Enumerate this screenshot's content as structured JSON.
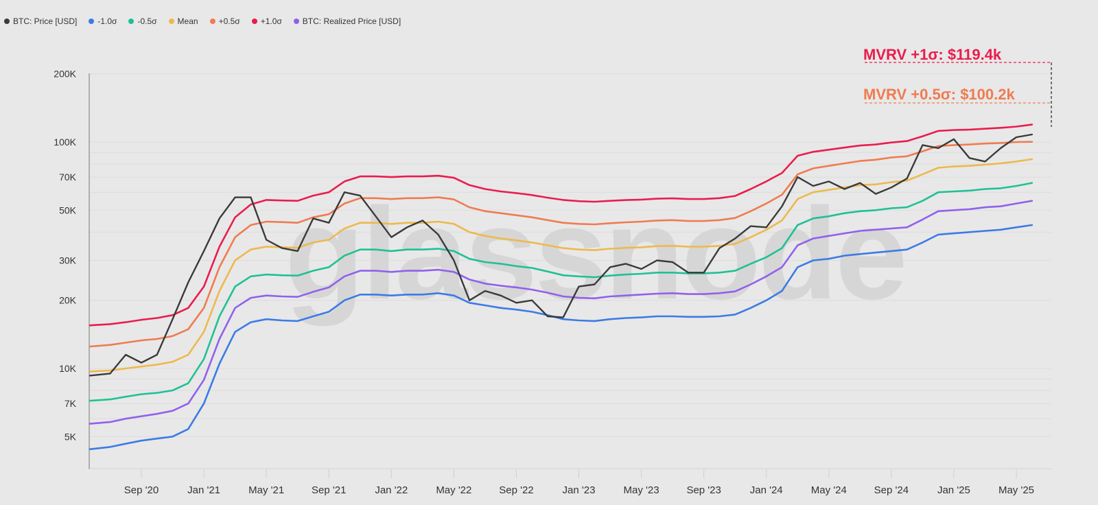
{
  "legend": [
    {
      "label": "BTC: Price [USD]",
      "color": "#3a3a3a",
      "key": "price"
    },
    {
      "label": "-1.0σ",
      "color": "#3b7be6",
      "key": "minus1"
    },
    {
      "label": "-0.5σ",
      "color": "#1fc194",
      "key": "minus05"
    },
    {
      "label": "Mean",
      "color": "#edb94d",
      "key": "mean"
    },
    {
      "label": "+0.5σ",
      "color": "#f07b4f",
      "key": "plus05"
    },
    {
      "label": "+1.0σ",
      "color": "#ea1c4d",
      "key": "plus1"
    },
    {
      "label": "BTC: Realized Price [USD]",
      "color": "#9061ec",
      "key": "realized"
    }
  ],
  "annotations": {
    "plus1": {
      "text": "MVRV +1σ: $119.4k",
      "color": "#ea1c4d"
    },
    "plus05": {
      "text": "MVRV +0.5σ: $100.2k",
      "color": "#f07b4f"
    }
  },
  "watermark": "glassnode",
  "chart_data": {
    "type": "line",
    "title": "",
    "xlabel": "",
    "ylabel": "",
    "yscale": "log",
    "ylim": [
      4200,
      200000
    ],
    "grid": true,
    "legend_position": "top-left",
    "y_ticks": [
      {
        "label": "200K",
        "value": 200000
      },
      {
        "label": "100K",
        "value": 100000
      },
      {
        "label": "70K",
        "value": 70000
      },
      {
        "label": "50K",
        "value": 50000
      },
      {
        "label": "30K",
        "value": 30000
      },
      {
        "label": "20K",
        "value": 20000
      },
      {
        "label": "10K",
        "value": 10000
      },
      {
        "label": "7K",
        "value": 7000
      },
      {
        "label": "5K",
        "value": 5000
      }
    ],
    "y_gridlines": [
      200000,
      100000,
      90000,
      80000,
      70000,
      60000,
      50000,
      40000,
      30000,
      20000,
      10000,
      9000,
      8000,
      7000,
      6000,
      5000
    ],
    "x_ticks": [
      "Sep '20",
      "Jan '21",
      "May '21",
      "Sep '21",
      "Jan '22",
      "May '22",
      "Sep '22",
      "Jan '23",
      "May '23",
      "Sep '23",
      "Jan '24",
      "May '24",
      "Sep '24",
      "Jan '25",
      "May '25"
    ],
    "x": [
      "2020-06",
      "2020-07",
      "2020-08",
      "2020-09",
      "2020-10",
      "2020-11",
      "2020-12",
      "2021-01",
      "2021-02",
      "2021-03",
      "2021-04",
      "2021-05",
      "2021-06",
      "2021-07",
      "2021-08",
      "2021-09",
      "2021-10",
      "2021-11",
      "2021-12",
      "2022-01",
      "2022-02",
      "2022-03",
      "2022-04",
      "2022-05",
      "2022-06",
      "2022-07",
      "2022-08",
      "2022-09",
      "2022-10",
      "2022-11",
      "2022-12",
      "2023-01",
      "2023-02",
      "2023-03",
      "2023-04",
      "2023-05",
      "2023-06",
      "2023-07",
      "2023-08",
      "2023-09",
      "2023-10",
      "2023-11",
      "2023-12",
      "2024-01",
      "2024-02",
      "2024-03",
      "2024-04",
      "2024-05",
      "2024-06",
      "2024-07",
      "2024-08",
      "2024-09",
      "2024-10",
      "2024-11",
      "2024-12",
      "2025-01",
      "2025-02",
      "2025-03",
      "2025-04",
      "2025-05",
      "2025-06"
    ],
    "series": [
      {
        "name": "BTC: Price [USD]",
        "key": "price",
        "values": [
          9300,
          9500,
          11500,
          10600,
          11500,
          16500,
          24000,
          33000,
          46000,
          57000,
          57000,
          37000,
          34000,
          33000,
          46000,
          44000,
          60000,
          58000,
          47000,
          38000,
          42000,
          45000,
          39000,
          30000,
          20000,
          22000,
          21000,
          19500,
          20000,
          17000,
          16800,
          23000,
          23500,
          28000,
          29000,
          27500,
          30000,
          29500,
          26500,
          26500,
          34000,
          37500,
          42500,
          42000,
          52000,
          70000,
          64000,
          67000,
          62000,
          66000,
          59000,
          63000,
          69000,
          97000,
          94000,
          103000,
          85000,
          82000,
          94000,
          105000,
          108000
        ]
      },
      {
        "name": "-1.0σ",
        "key": "minus1",
        "values": [
          4400,
          4500,
          4650,
          4800,
          4900,
          5000,
          5400,
          7000,
          10500,
          14500,
          16000,
          16500,
          16300,
          16200,
          17000,
          17800,
          20000,
          21200,
          21200,
          21000,
          21200,
          21200,
          21500,
          21000,
          19500,
          19000,
          18500,
          18200,
          17800,
          17200,
          16500,
          16300,
          16200,
          16500,
          16700,
          16800,
          17000,
          17000,
          16900,
          16900,
          17000,
          17300,
          18500,
          20000,
          22000,
          28000,
          30000,
          30500,
          31500,
          32000,
          32500,
          33000,
          33500,
          36000,
          39000,
          39500,
          40000,
          40500,
          41000,
          42000,
          43000
        ]
      },
      {
        "name": "-0.5σ",
        "key": "minus05",
        "values": [
          7200,
          7300,
          7500,
          7700,
          7800,
          8000,
          8600,
          11000,
          17000,
          23000,
          25500,
          26000,
          25800,
          25700,
          27000,
          28000,
          31500,
          33500,
          33500,
          33000,
          33500,
          33500,
          33800,
          33000,
          30500,
          29500,
          29000,
          28300,
          27800,
          26800,
          25800,
          25500,
          25300,
          25700,
          26000,
          26200,
          26500,
          26500,
          26300,
          26300,
          26500,
          27000,
          29000,
          31000,
          34000,
          43000,
          46000,
          47000,
          48500,
          49500,
          50000,
          51000,
          51500,
          55000,
          60000,
          60500,
          61000,
          62000,
          62500,
          64000,
          66000
        ]
      },
      {
        "name": "Mean",
        "key": "mean",
        "values": [
          9700,
          9800,
          10000,
          10200,
          10400,
          10700,
          11500,
          14500,
          22000,
          30000,
          33500,
          34500,
          34300,
          34100,
          36000,
          37000,
          41500,
          44000,
          44000,
          43500,
          44000,
          44000,
          44500,
          43500,
          40000,
          38500,
          37500,
          36800,
          36000,
          35000,
          34000,
          33500,
          33300,
          33800,
          34100,
          34300,
          34700,
          34800,
          34500,
          34500,
          34800,
          35500,
          38000,
          41000,
          45000,
          56000,
          60000,
          61500,
          63000,
          64500,
          65000,
          66500,
          67500,
          72000,
          77000,
          78000,
          78500,
          79500,
          80500,
          82000,
          84000
        ]
      },
      {
        "name": "+0.5σ",
        "key": "plus05",
        "values": [
          12500,
          12700,
          13000,
          13300,
          13500,
          13900,
          14900,
          18500,
          28000,
          38000,
          43000,
          44500,
          44300,
          44000,
          46500,
          48000,
          53500,
          56500,
          56500,
          56000,
          56500,
          56500,
          57000,
          55800,
          51500,
          49500,
          48500,
          47500,
          46500,
          45200,
          44000,
          43500,
          43300,
          43800,
          44200,
          44500,
          45000,
          45200,
          44800,
          44800,
          45200,
          46200,
          49500,
          53500,
          58500,
          72000,
          76500,
          78500,
          80500,
          82500,
          83500,
          85500,
          86500,
          91000,
          96000,
          97000,
          97500,
          98500,
          99000,
          100000,
          100200
        ]
      },
      {
        "name": "+1.0σ",
        "key": "plus1",
        "values": [
          15500,
          15700,
          16000,
          16400,
          16700,
          17200,
          18500,
          23000,
          34500,
          46500,
          53000,
          55500,
          55200,
          55000,
          58000,
          60000,
          67000,
          70500,
          70500,
          70000,
          70500,
          70500,
          71000,
          69500,
          64500,
          62000,
          60500,
          59500,
          58300,
          56800,
          55500,
          54800,
          54500,
          55000,
          55400,
          55700,
          56200,
          56400,
          56000,
          56000,
          56500,
          57800,
          62000,
          67000,
          73000,
          87000,
          90500,
          92500,
          94500,
          96500,
          97500,
          99500,
          101000,
          106000,
          112000,
          113000,
          113500,
          114500,
          115500,
          117000,
          119400
        ]
      },
      {
        "name": "BTC: Realized Price [USD]",
        "key": "realized",
        "values": [
          5700,
          5800,
          6000,
          6150,
          6300,
          6500,
          7000,
          8900,
          13500,
          18500,
          20500,
          21000,
          20800,
          20700,
          21800,
          22800,
          25500,
          27000,
          27000,
          26700,
          27000,
          27000,
          27300,
          26700,
          24700,
          23700,
          23200,
          22800,
          22300,
          21600,
          20800,
          20500,
          20400,
          20800,
          21000,
          21200,
          21400,
          21500,
          21300,
          21300,
          21500,
          21900,
          23500,
          25500,
          28000,
          35000,
          37500,
          38500,
          39500,
          40500,
          41000,
          41500,
          42000,
          45500,
          49500,
          50000,
          50500,
          51500,
          52000,
          53500,
          55000
        ]
      }
    ]
  }
}
